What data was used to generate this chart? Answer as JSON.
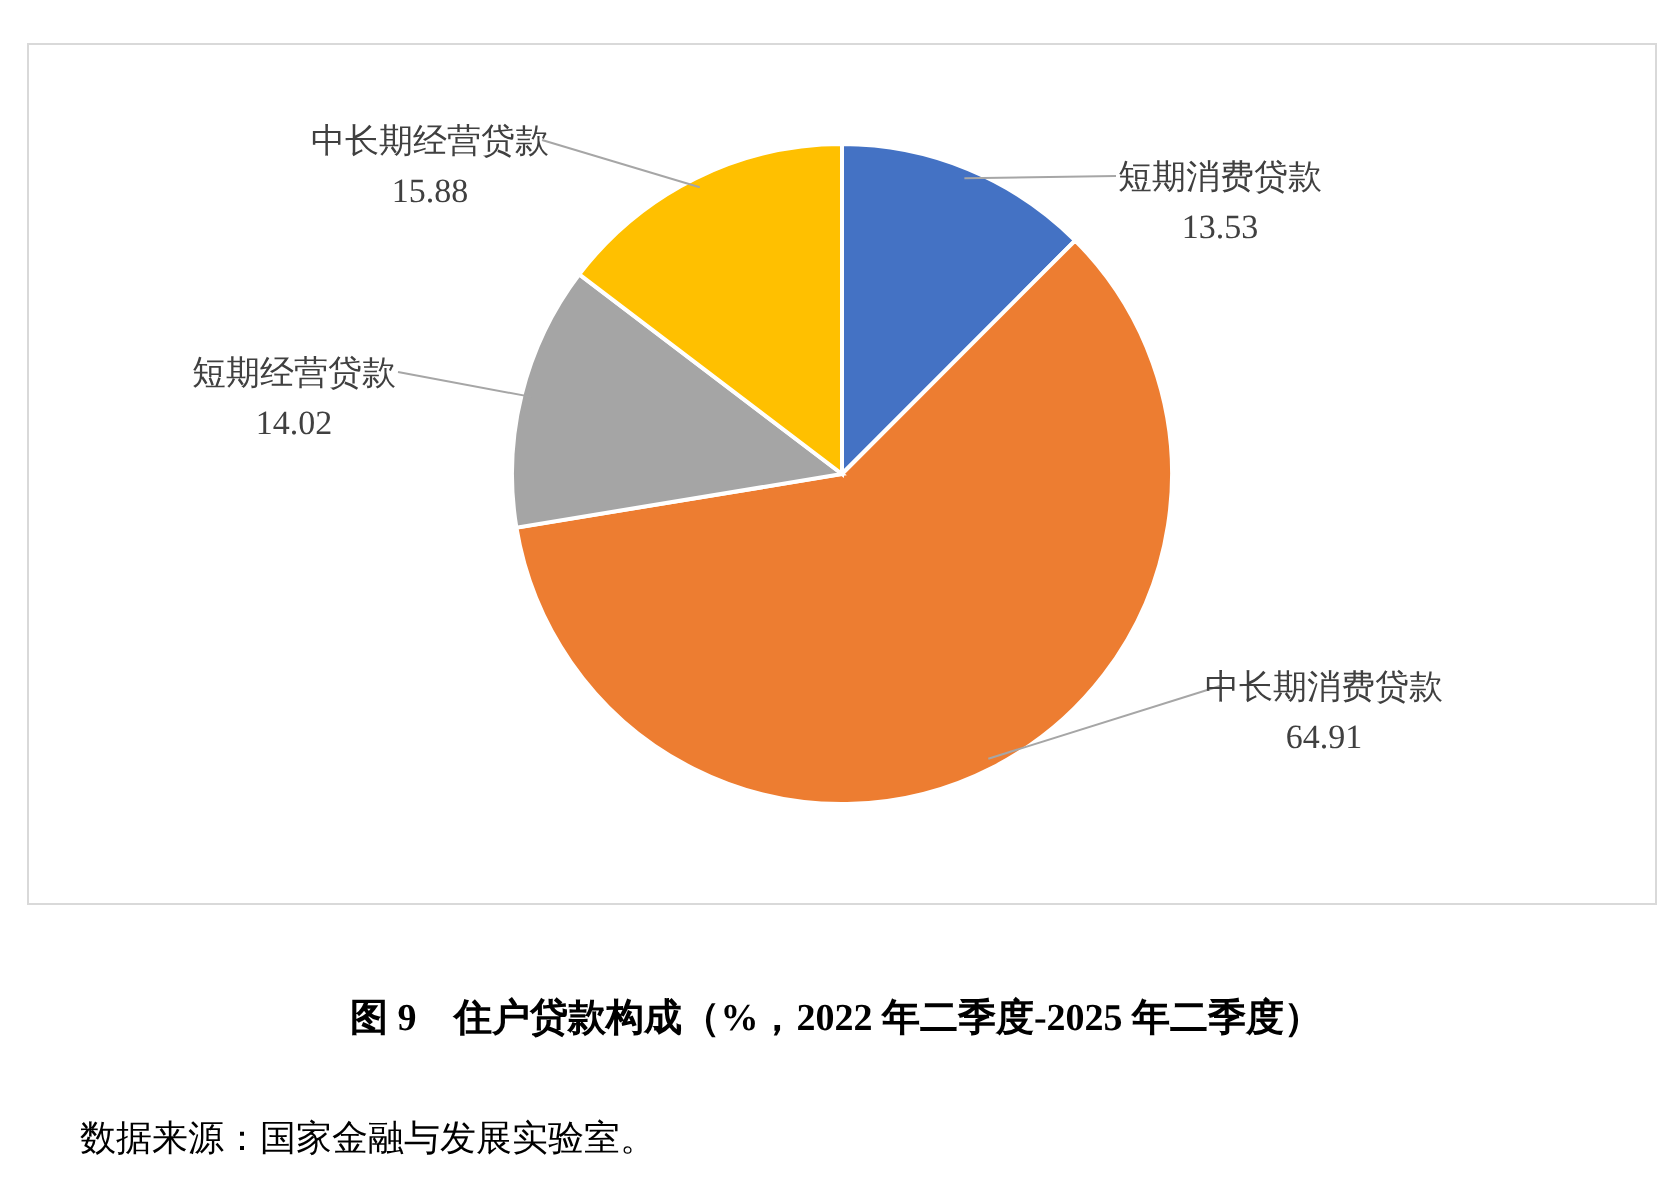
{
  "chart_data": {
    "type": "pie",
    "title": "图 9　住户贷款构成（%，2022 年二季度-2025 年二季度）",
    "categories": [
      "短期消费贷款",
      "中长期消费贷款",
      "短期经营贷款",
      "中长期经营贷款"
    ],
    "values": [
      13.53,
      64.91,
      14.02,
      15.88
    ],
    "colors": [
      "#4472c4",
      "#ed7d31",
      "#a5a5a5",
      "#ffc000"
    ],
    "data_labels": true,
    "annotations": [
      "数据来源：国家金融与发展实验室。"
    ]
  }
}
